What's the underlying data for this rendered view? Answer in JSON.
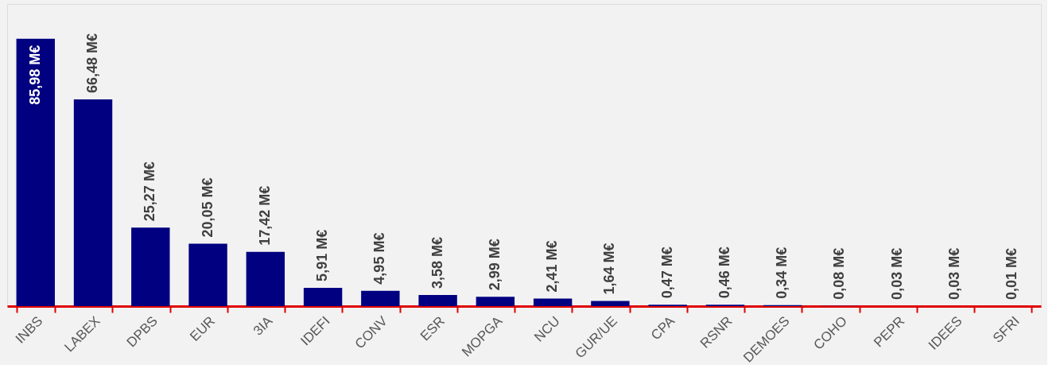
{
  "chart_data": {
    "type": "bar",
    "categories": [
      "INBS",
      "LABEX",
      "DPBS",
      "EUR",
      "3IA",
      "IDEFI",
      "CONV",
      "ESR",
      "MOPGA",
      "NCU",
      "GUR/UE",
      "CPA",
      "RSNR",
      "DEMOES",
      "COHO",
      "PEPR",
      "IDEES",
      "SFRI"
    ],
    "values": [
      85.98,
      66.48,
      25.27,
      20.05,
      17.42,
      5.91,
      4.95,
      3.58,
      2.99,
      2.41,
      1.64,
      0.47,
      0.46,
      0.34,
      0.08,
      0.03,
      0.03,
      0.01
    ],
    "value_labels": [
      "85,98 M€",
      "66,48 M€",
      "25,27 M€",
      "20,05 M€",
      "17,42 M€",
      "5,91 M€",
      "4,95 M€",
      "3,58 M€",
      "2,99 M€",
      "2,41 M€",
      "1,64 M€",
      "0,47 M€",
      "0,46 M€",
      "0,34 M€",
      "0,08 M€",
      "0,03 M€",
      "0,03 M€",
      "0,01 M€"
    ],
    "color": "#000080",
    "grid": false
  }
}
